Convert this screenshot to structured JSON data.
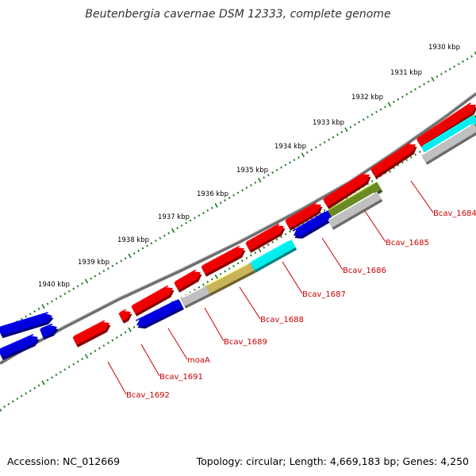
{
  "title": "Beutenbergia cavernae DSM 12333, complete genome",
  "colors": {
    "forward_cds": "#ee0000",
    "reverse_cds": "#0000dd",
    "cyan_cds": "#00eeee",
    "olive_cds": "#6b8a23",
    "khaki_cds": "#c8b45a",
    "gray_cds": "#c0c0c0",
    "backbone": "#777777",
    "ticks": "#1b7a1b",
    "label": "#cc0000"
  },
  "scale_labels": [
    "1930 kbp",
    "1931 kbp",
    "1932 kbp",
    "1933 kbp",
    "1934 kbp",
    "1935 kbp",
    "1936 kbp",
    "1937 kbp",
    "1938 kbp",
    "1939 kbp",
    "1940 kbp"
  ],
  "genes": [
    {
      "label": "Bcav_1684",
      "strand": "reverse"
    },
    {
      "label": "Bcav_1685",
      "strand": "reverse"
    },
    {
      "label": "Bcav_1686",
      "strand": "reverse"
    },
    {
      "label": "Bcav_1687",
      "strand": "reverse"
    },
    {
      "label": "Bcav_1688",
      "strand": "reverse"
    },
    {
      "label": "Bcav_1689",
      "strand": "reverse"
    },
    {
      "label": "moaA",
      "strand": "reverse"
    },
    {
      "label": "Bcav_1691",
      "strand": "forward"
    },
    {
      "label": "Bcav_1692",
      "strand": "forward"
    }
  ],
  "footer": {
    "accession": "Accession: NC_012669",
    "summary": "Topology: circular; Length: 4,669,183 bp; Genes: 4,250"
  }
}
